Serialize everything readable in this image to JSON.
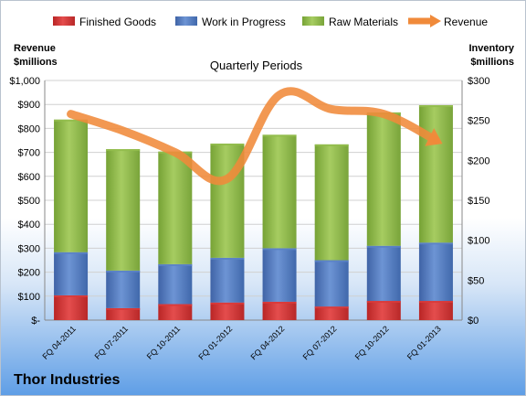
{
  "company": "Thor Industries",
  "chart_data": {
    "type": "bar",
    "stacked": true,
    "title": "Quarterly Periods",
    "left_axis_label": [
      "Revenue",
      "$millions"
    ],
    "right_axis_label": [
      "Inventory",
      "$millions"
    ],
    "categories": [
      "FQ 04-2011",
      "FQ 07-2011",
      "FQ 10-2011",
      "FQ 01-2012",
      "FQ 04-2012",
      "FQ 07-2012",
      "FQ 10-2012",
      "FQ 01-2013"
    ],
    "series": [
      {
        "name": "Finished Goods",
        "axis": "right",
        "color": "#d93a3a",
        "values": [
          31,
          15,
          20,
          22,
          23,
          17,
          24,
          24
        ]
      },
      {
        "name": "Work in Progress",
        "axis": "right",
        "color": "#5b82c7",
        "values": [
          54,
          47,
          50,
          56,
          67,
          58,
          69,
          73
        ]
      },
      {
        "name": "Raw Materials",
        "axis": "right",
        "color": "#92bd4d",
        "values": [
          166,
          152,
          141,
          143,
          142,
          145,
          167,
          172
        ]
      },
      {
        "name": "Revenue",
        "axis": "left",
        "type": "line",
        "color": "#f08a3a",
        "values": [
          860,
          790,
          700,
          590,
          940,
          880,
          860,
          750
        ]
      }
    ],
    "left_axis": {
      "min": 0,
      "max": 1000,
      "step": 100,
      "tick_labels": [
        "$-",
        "$100",
        "$200",
        "$300",
        "$400",
        "$500",
        "$600",
        "$700",
        "$800",
        "$900",
        "$1,000"
      ]
    },
    "right_axis": {
      "min": 0,
      "max": 300,
      "step": 50,
      "tick_labels": [
        "$0",
        "$50",
        "$100",
        "$150",
        "$200",
        "$250",
        "$300"
      ]
    },
    "legend_position": "top",
    "grid": true
  }
}
